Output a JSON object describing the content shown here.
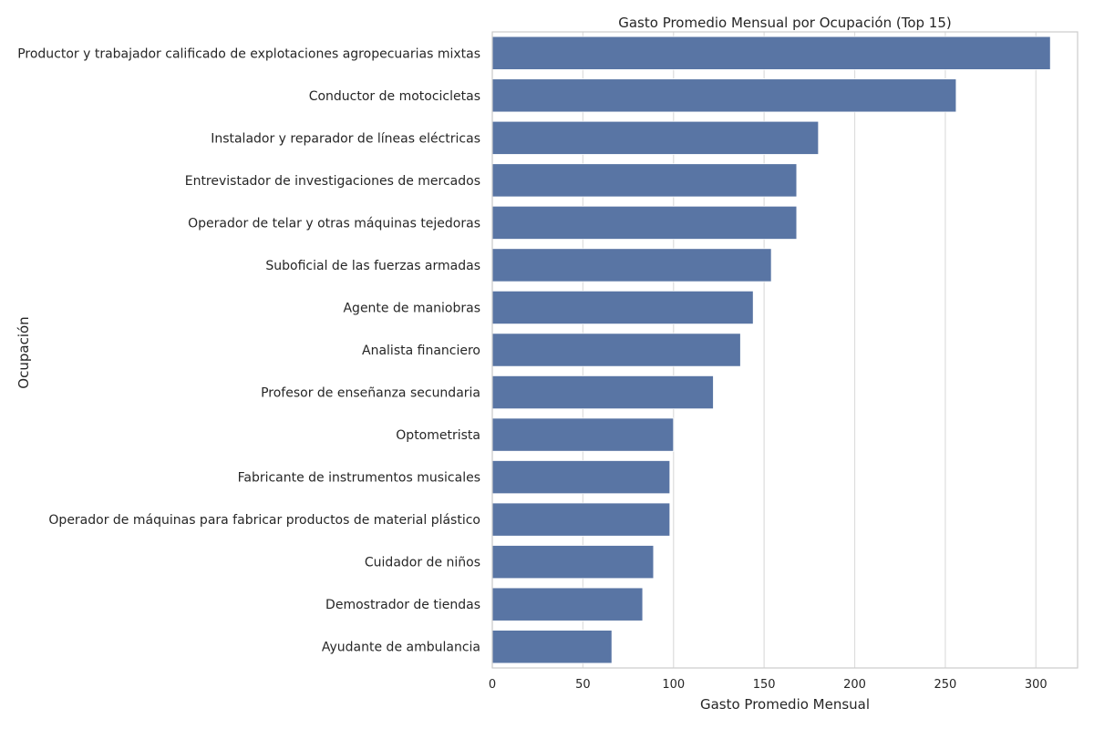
{
  "chart_data": {
    "type": "bar",
    "orientation": "horizontal",
    "title": "Gasto Promedio Mensual por Ocupación (Top 15)",
    "xlabel": "Gasto Promedio Mensual",
    "ylabel": "Ocupación",
    "xlim": [
      0,
      323
    ],
    "xticks": [
      0,
      50,
      100,
      150,
      200,
      250,
      300
    ],
    "grid": true,
    "bar_color": "#5975a4",
    "categories": [
      "Productor y trabajador calificado de explotaciones agropecuarias mixtas",
      "Conductor de motocicletas",
      "Instalador y reparador de líneas eléctricas",
      "Entrevistador de investigaciones de mercados",
      "Operador de telar y otras máquinas tejedoras",
      "Suboficial de las fuerzas armadas",
      "Agente de maniobras",
      "Analista financiero",
      "Profesor de enseñanza secundaria",
      "Optometrista",
      "Fabricante de instrumentos musicales",
      "Operador de máquinas para fabricar productos de material plástico",
      "Cuidador de niños",
      "Demostrador de tiendas",
      "Ayudante de ambulancia"
    ],
    "values": [
      308,
      256,
      180,
      168,
      168,
      154,
      144,
      137,
      122,
      100,
      98,
      98,
      89,
      83,
      66
    ]
  }
}
